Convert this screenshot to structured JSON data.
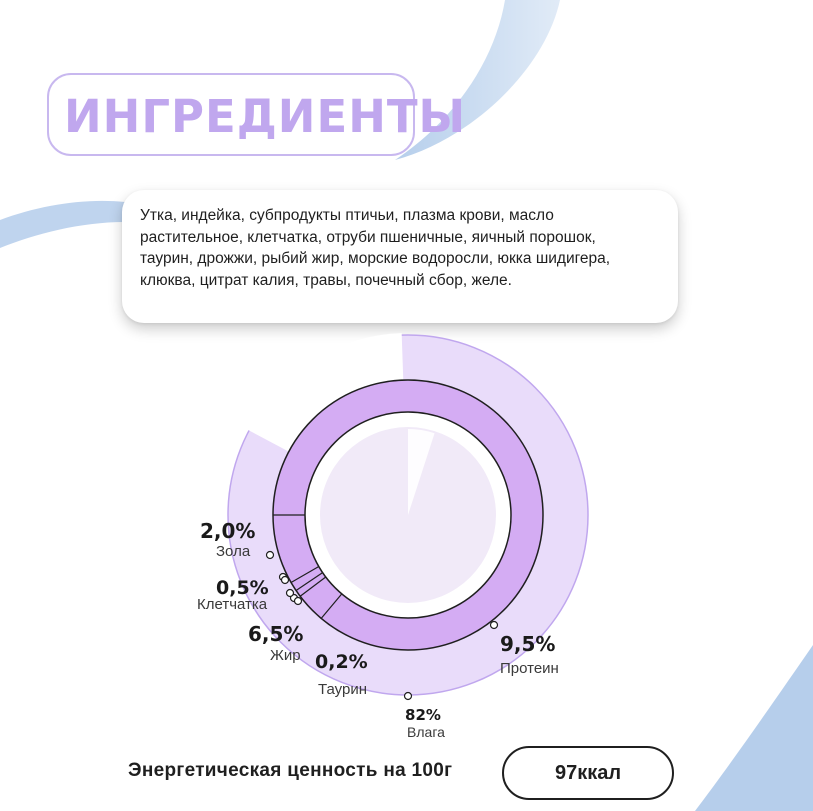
{
  "header": {
    "title": "ИНГРЕДИЕНТЫ"
  },
  "ingredients": {
    "lines": [
      "Утка, индейка, субпродукты птичьи, плазма крови, масло",
      "растительное, клетчатка, отруби пшеничные, яичный порошок,",
      "таурин, дрожжи, рыбий жир, морские водоросли, юкка шидигера,",
      "клюква, цитрат калия, травы, почечный сбор, желе."
    ]
  },
  "chart_data": {
    "type": "pie",
    "title": "",
    "slices": [
      {
        "name": "Влага",
        "label": "82%",
        "value": 82
      },
      {
        "name": "Протеин",
        "label": "9,5%",
        "value": 9.5
      },
      {
        "name": "Зола",
        "label": "2,0%",
        "value": 2.0
      },
      {
        "name": "Клетчатка",
        "label": "0,5%",
        "value": 0.5
      },
      {
        "name": "Жир",
        "label": "6,5%",
        "value": 6.5
      },
      {
        "name": "Таурин",
        "label": "0,2%",
        "value": 0.2
      }
    ],
    "colors": {
      "outer_ring": "#e9dcfa",
      "inner_ring": "#d4acf3",
      "center": "#f1eaf8",
      "accent": "#c0a7ee",
      "stripe": "#a9c6e8"
    }
  },
  "footer": {
    "energy_label": "Энергетическая ценность на 100г",
    "energy_value": "97ккал"
  }
}
